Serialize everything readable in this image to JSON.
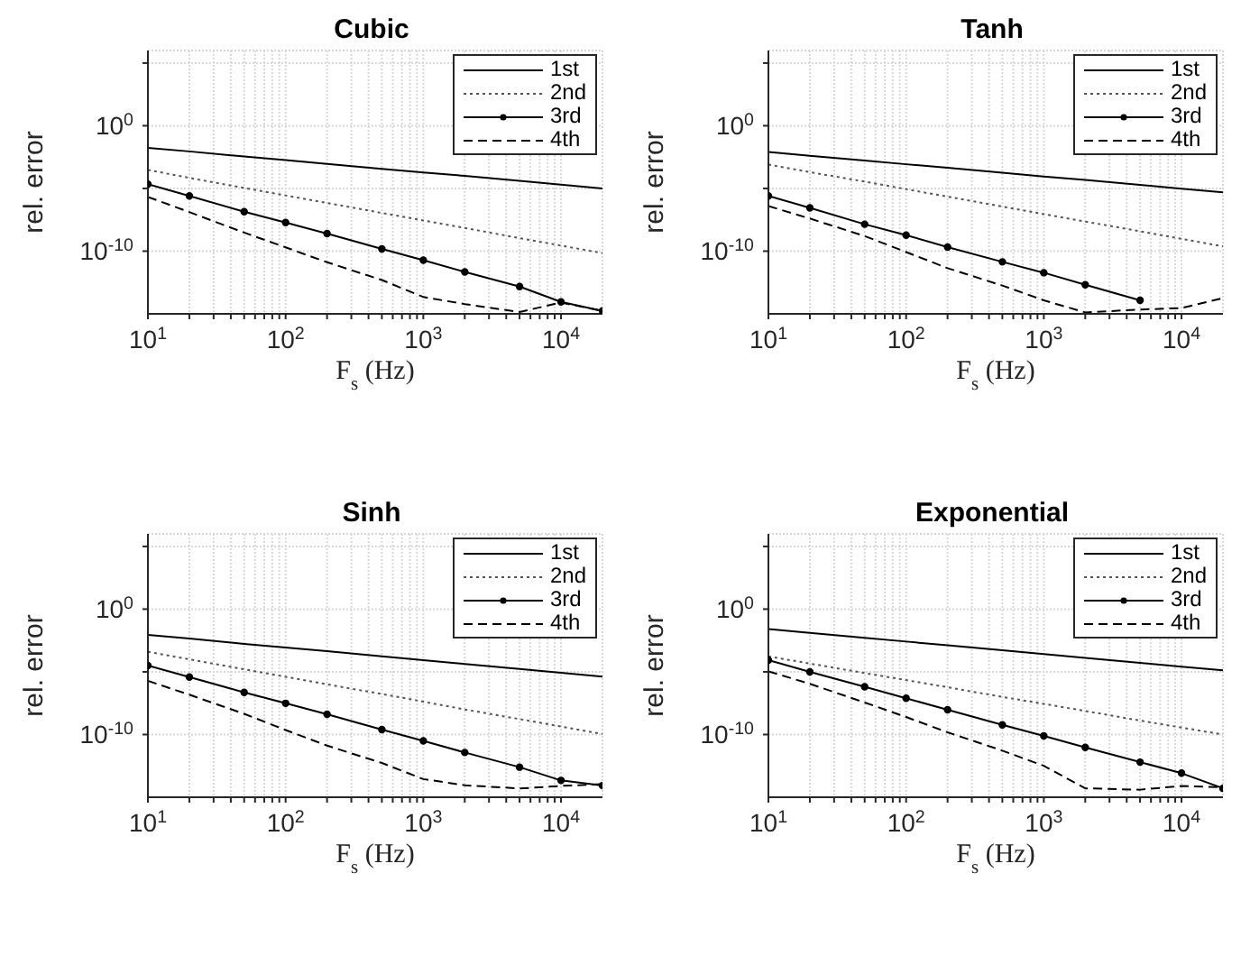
{
  "chart_data": [
    {
      "type": "line",
      "title": "Cubic",
      "xlabel": "F$_{s}$ (Hz)",
      "ylabel": "rel. error",
      "log": "xy",
      "grid": true,
      "legend": "top right",
      "x": [
        10,
        20,
        50,
        100,
        200,
        500,
        1000,
        2000,
        5000,
        10000,
        20000
      ],
      "xlim": [
        10,
        20000
      ],
      "xticks": [
        {
          "value": 10,
          "label": "10$^{1}$"
        },
        {
          "value": 20,
          "label": null
        },
        {
          "value": 30,
          "label": null
        },
        {
          "value": 40,
          "label": null
        },
        {
          "value": 50,
          "label": null
        },
        {
          "value": 60,
          "label": null
        },
        {
          "value": 70,
          "label": null
        },
        {
          "value": 80,
          "label": null
        },
        {
          "value": 90,
          "label": null
        },
        {
          "value": 100,
          "label": "10$^{2}$"
        },
        {
          "value": 200,
          "label": null
        },
        {
          "value": 300,
          "label": null
        },
        {
          "value": 400,
          "label": null
        },
        {
          "value": 500,
          "label": null
        },
        {
          "value": 600,
          "label": null
        },
        {
          "value": 700,
          "label": null
        },
        {
          "value": 800,
          "label": null
        },
        {
          "value": 900,
          "label": null
        },
        {
          "value": 1000,
          "label": "10$^{3}$"
        },
        {
          "value": 2000,
          "label": null
        },
        {
          "value": 3000,
          "label": null
        },
        {
          "value": 4000,
          "label": null
        },
        {
          "value": 5000,
          "label": null
        },
        {
          "value": 6000,
          "label": null
        },
        {
          "value": 7000,
          "label": null
        },
        {
          "value": 8000,
          "label": null
        },
        {
          "value": 9000,
          "label": null
        },
        {
          "value": 10000,
          "label": "10$^{4}$"
        }
      ],
      "ylim": [
        1e-15,
        1000000.0
      ],
      "yticks": [
        {
          "value": 1e-10,
          "label": "10$^{-10}$"
        },
        {
          "value": 1e-05,
          "label": null
        },
        {
          "value": 1,
          "label": "10$^{0}$"
        },
        {
          "value": 100000.0,
          "label": null
        }
      ],
      "series": [
        {
          "name": "1st",
          "color": "#000000",
          "line_style": "solid",
          "marker": "none",
          "values": [
            0.017,
            0.009,
            0.0035,
            0.0018,
            0.0009,
            0.00037,
            0.00019,
            0.0001,
            4e-05,
            2e-05,
            1e-05
          ]
        },
        {
          "name": "2nd",
          "color": "#555555",
          "line_style": "dotted",
          "marker": "none",
          "values": [
            0.0003,
            7e-05,
            1.1e-05,
            2.8e-06,
            7e-07,
            1.1e-07,
            2.8e-08,
            7e-09,
            1.1e-09,
            2.8e-10,
            7e-11
          ]
        },
        {
          "name": "3rd",
          "color": "#000000",
          "line_style": "solid",
          "marker": "circle",
          "values": [
            2.2e-05,
            2.5e-06,
            1.4e-07,
            1.9e-08,
            2.5e-09,
            1.5e-10,
            1.9e-11,
            2.2e-12,
            1.5e-13,
            9e-15,
            1.7e-15
          ]
        },
        {
          "name": "4th",
          "color": "#000000",
          "line_style": "dashed",
          "marker": "none",
          "values": [
            2.1e-06,
            1.3e-07,
            3e-09,
            2e-10,
            1.3e-11,
            5e-13,
            2.2e-14,
            6e-15,
            1.4e-15,
            8e-15,
            1.7e-15
          ]
        }
      ]
    },
    {
      "type": "line",
      "title": "Tanh",
      "xlabel": "F$_{s}$ (Hz)",
      "ylabel": "rel. error",
      "log": "xy",
      "grid": true,
      "legend": "top right",
      "x": [
        10,
        20,
        50,
        100,
        200,
        500,
        1000,
        2000,
        5000,
        10000,
        20000
      ],
      "xlim": [
        10,
        20000
      ],
      "xticks": [
        {
          "value": 10,
          "label": "10$^{1}$"
        },
        {
          "value": 20,
          "label": null
        },
        {
          "value": 30,
          "label": null
        },
        {
          "value": 40,
          "label": null
        },
        {
          "value": 50,
          "label": null
        },
        {
          "value": 60,
          "label": null
        },
        {
          "value": 70,
          "label": null
        },
        {
          "value": 80,
          "label": null
        },
        {
          "value": 90,
          "label": null
        },
        {
          "value": 100,
          "label": "10$^{2}$"
        },
        {
          "value": 200,
          "label": null
        },
        {
          "value": 300,
          "label": null
        },
        {
          "value": 400,
          "label": null
        },
        {
          "value": 500,
          "label": null
        },
        {
          "value": 600,
          "label": null
        },
        {
          "value": 700,
          "label": null
        },
        {
          "value": 800,
          "label": null
        },
        {
          "value": 900,
          "label": null
        },
        {
          "value": 1000,
          "label": "10$^{3}$"
        },
        {
          "value": 2000,
          "label": null
        },
        {
          "value": 3000,
          "label": null
        },
        {
          "value": 4000,
          "label": null
        },
        {
          "value": 5000,
          "label": null
        },
        {
          "value": 6000,
          "label": null
        },
        {
          "value": 7000,
          "label": null
        },
        {
          "value": 8000,
          "label": null
        },
        {
          "value": 9000,
          "label": null
        },
        {
          "value": 10000,
          "label": "10$^{4}$"
        }
      ],
      "ylim": [
        1e-15,
        1000000.0
      ],
      "yticks": [
        {
          "value": 1e-10,
          "label": "10$^{-10}$"
        },
        {
          "value": 1e-05,
          "label": null
        },
        {
          "value": 1,
          "label": "10$^{0}$"
        },
        {
          "value": 100000.0,
          "label": null
        }
      ],
      "series": [
        {
          "name": "1st",
          "color": "#000000",
          "line_style": "solid",
          "marker": "none",
          "values": [
            0.008,
            0.004,
            0.0017,
            0.00085,
            0.00044,
            0.00018,
            9e-05,
            4.7e-05,
            1.9e-05,
            9.5e-06,
            4.9e-06
          ]
        },
        {
          "name": "2nd",
          "color": "#555555",
          "line_style": "dotted",
          "marker": "none",
          "values": [
            0.0008,
            0.0002,
            3.5e-05,
            8.7e-06,
            2.2e-06,
            3.6e-07,
            9e-08,
            2.3e-08,
            3.8e-09,
            9.5e-10,
            2.4e-10
          ]
        },
        {
          "name": "3rd",
          "color": "#000000",
          "line_style": "solid",
          "marker": "circle",
          "values": [
            2.5e-06,
            2.8e-07,
            1.4e-08,
            1.9e-09,
            2.1e-10,
            1.4e-11,
            1.9e-12,
            2.1e-13,
            1.2e-14,
            null,
            null
          ]
        },
        {
          "name": "4th",
          "color": "#000000",
          "line_style": "dashed",
          "marker": "none",
          "values": [
            3.9e-07,
            4e-08,
            1.6e-09,
            8.5e-11,
            4.4e-12,
            1.8e-13,
            1.2e-14,
            1.3e-15,
            2.2e-15,
            2.9e-15,
            1.8e-14
          ]
        }
      ]
    },
    {
      "type": "line",
      "title": "Sinh",
      "xlabel": "F$_{s}$ (Hz)",
      "ylabel": "rel. error",
      "log": "xy",
      "grid": true,
      "legend": "top right",
      "x": [
        10,
        20,
        50,
        100,
        200,
        500,
        1000,
        2000,
        5000,
        10000,
        20000
      ],
      "xlim": [
        10,
        20000
      ],
      "xticks": [
        {
          "value": 10,
          "label": "10$^{1}$"
        },
        {
          "value": 20,
          "label": null
        },
        {
          "value": 30,
          "label": null
        },
        {
          "value": 40,
          "label": null
        },
        {
          "value": 50,
          "label": null
        },
        {
          "value": 60,
          "label": null
        },
        {
          "value": 70,
          "label": null
        },
        {
          "value": 80,
          "label": null
        },
        {
          "value": 90,
          "label": null
        },
        {
          "value": 100,
          "label": "10$^{2}$"
        },
        {
          "value": 200,
          "label": null
        },
        {
          "value": 300,
          "label": null
        },
        {
          "value": 400,
          "label": null
        },
        {
          "value": 500,
          "label": null
        },
        {
          "value": 600,
          "label": null
        },
        {
          "value": 700,
          "label": null
        },
        {
          "value": 800,
          "label": null
        },
        {
          "value": 900,
          "label": null
        },
        {
          "value": 1000,
          "label": "10$^{3}$"
        },
        {
          "value": 2000,
          "label": null
        },
        {
          "value": 3000,
          "label": null
        },
        {
          "value": 4000,
          "label": null
        },
        {
          "value": 5000,
          "label": null
        },
        {
          "value": 6000,
          "label": null
        },
        {
          "value": 7000,
          "label": null
        },
        {
          "value": 8000,
          "label": null
        },
        {
          "value": 9000,
          "label": null
        },
        {
          "value": 10000,
          "label": "10$^{4}$"
        }
      ],
      "ylim": [
        1e-15,
        1000000.0
      ],
      "yticks": [
        {
          "value": 1e-10,
          "label": "10$^{-10}$"
        },
        {
          "value": 1e-05,
          "label": null
        },
        {
          "value": 1,
          "label": "10$^{0}$"
        },
        {
          "value": 100000.0,
          "label": null
        }
      ],
      "series": [
        {
          "name": "1st",
          "color": "#000000",
          "line_style": "solid",
          "marker": "none",
          "values": [
            0.009,
            0.0045,
            0.0017,
            0.00087,
            0.00044,
            0.00017,
            8.5e-05,
            4.3e-05,
            1.7e-05,
            8.5e-06,
            4.2e-06
          ]
        },
        {
          "name": "2nd",
          "color": "#555555",
          "line_style": "dotted",
          "marker": "none",
          "values": [
            0.00039,
            0.0001,
            1.6e-05,
            4e-06,
            1e-06,
            1.7e-07,
            4.2e-08,
            1e-08,
            1.7e-09,
            4.3e-10,
            1.1e-10
          ]
        },
        {
          "name": "3rd",
          "color": "#000000",
          "line_style": "solid",
          "marker": "circle",
          "values": [
            3.2e-05,
            3.8e-06,
            2.3e-07,
            3.1e-08,
            4.1e-09,
            2.5e-10,
            3.1e-11,
            3.7e-12,
            2.5e-13,
            2.2e-14,
            8.5e-15
          ]
        },
        {
          "name": "4th",
          "color": "#000000",
          "line_style": "dashed",
          "marker": "none",
          "values": [
            1.9e-06,
            1.5e-07,
            4.5e-09,
            2.3e-10,
            1.3e-11,
            5.4e-13,
            2.8e-14,
            9e-15,
            5e-15,
            8e-15,
            1.1e-14
          ]
        }
      ]
    },
    {
      "type": "line",
      "title": "Exponential",
      "xlabel": "F$_{s}$ (Hz)",
      "ylabel": "rel. error",
      "log": "xy",
      "grid": true,
      "legend": "top right",
      "x": [
        10,
        20,
        50,
        100,
        200,
        500,
        1000,
        2000,
        5000,
        10000,
        20000
      ],
      "xlim": [
        10,
        20000
      ],
      "xticks": [
        {
          "value": 10,
          "label": "10$^{1}$"
        },
        {
          "value": 20,
          "label": null
        },
        {
          "value": 30,
          "label": null
        },
        {
          "value": 40,
          "label": null
        },
        {
          "value": 50,
          "label": null
        },
        {
          "value": 60,
          "label": null
        },
        {
          "value": 70,
          "label": null
        },
        {
          "value": 80,
          "label": null
        },
        {
          "value": 90,
          "label": null
        },
        {
          "value": 100,
          "label": "10$^{2}$"
        },
        {
          "value": 200,
          "label": null
        },
        {
          "value": 300,
          "label": null
        },
        {
          "value": 400,
          "label": null
        },
        {
          "value": 500,
          "label": null
        },
        {
          "value": 600,
          "label": null
        },
        {
          "value": 700,
          "label": null
        },
        {
          "value": 800,
          "label": null
        },
        {
          "value": 900,
          "label": null
        },
        {
          "value": 1000,
          "label": "10$^{3}$"
        },
        {
          "value": 2000,
          "label": null
        },
        {
          "value": 3000,
          "label": null
        },
        {
          "value": 4000,
          "label": null
        },
        {
          "value": 5000,
          "label": null
        },
        {
          "value": 6000,
          "label": null
        },
        {
          "value": 7000,
          "label": null
        },
        {
          "value": 8000,
          "label": null
        },
        {
          "value": 9000,
          "label": null
        },
        {
          "value": 10000,
          "label": "10$^{4}$"
        }
      ],
      "ylim": [
        1e-15,
        1000000.0
      ],
      "yticks": [
        {
          "value": 1e-10,
          "label": "10$^{-10}$"
        },
        {
          "value": 1e-05,
          "label": null
        },
        {
          "value": 1,
          "label": "10$^{0}$"
        },
        {
          "value": 100000.0,
          "label": null
        }
      ],
      "series": [
        {
          "name": "1st",
          "color": "#000000",
          "line_style": "solid",
          "marker": "none",
          "values": [
            0.026,
            0.013,
            0.0052,
            0.0026,
            0.0013,
            0.00052,
            0.00026,
            0.00013,
            5.2e-05,
            2.6e-05,
            1.35e-05
          ]
        },
        {
          "name": "2nd",
          "color": "#555555",
          "line_style": "dotted",
          "marker": "none",
          "values": [
            0.00017,
            4.6e-05,
            8e-06,
            2.2e-06,
            5.9e-07,
            1e-07,
            2.8e-08,
            7.6e-09,
            1.3e-09,
            3.6e-10,
            1e-10
          ]
        },
        {
          "name": "3rd",
          "color": "#000000",
          "line_style": "solid",
          "marker": "circle",
          "values": [
            8.5e-05,
            1e-05,
            6.5e-07,
            7.8e-08,
            9.5e-09,
            5.9e-10,
            7.8e-11,
            9.3e-12,
            6.3e-13,
            8.3e-14,
            5.1e-15
          ]
        },
        {
          "name": "4th",
          "color": "#000000",
          "line_style": "dashed",
          "marker": "none",
          "values": [
            1.1e-05,
            1.1e-06,
            3.6e-08,
            2.5e-09,
            1.5e-10,
            5.2e-12,
            3.2e-13,
            5.1e-15,
            4e-15,
            8e-15,
            6.3e-15
          ]
        }
      ]
    }
  ]
}
